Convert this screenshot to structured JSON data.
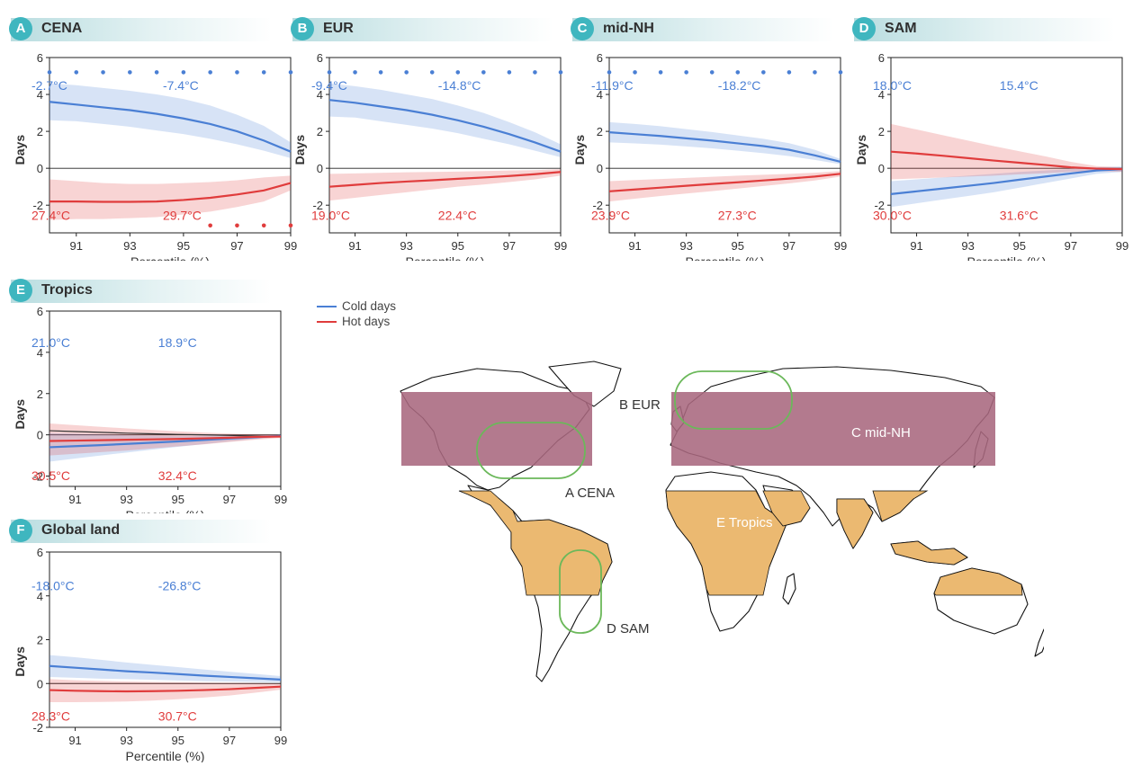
{
  "legend": {
    "cold_label": "Cold days",
    "hot_label": "Hot days",
    "cold_color": "#4a7fd4",
    "hot_color": "#e03c3c"
  },
  "chart_data": [
    {
      "id": "A",
      "title": "CENA",
      "type": "line",
      "xlabel": "Percentile (%)",
      "ylabel": "Days",
      "xlim": [
        90,
        99
      ],
      "ylim": [
        -3.5,
        6
      ],
      "xticks": [
        91,
        93,
        95,
        97,
        99
      ],
      "yticks": [
        -2,
        0,
        2,
        4,
        6
      ],
      "cold_temp_left": "-2.7°C",
      "cold_temp_right": "-7.4°C",
      "hot_temp_left": "27.4°C",
      "hot_temp_right": "29.7°C",
      "x": [
        90,
        91,
        92,
        93,
        94,
        95,
        96,
        97,
        98,
        99
      ],
      "cold": {
        "mean": [
          3.6,
          3.45,
          3.3,
          3.15,
          2.95,
          2.7,
          2.4,
          2.0,
          1.5,
          0.9
        ],
        "lower": [
          2.6,
          2.55,
          2.4,
          2.25,
          2.05,
          1.85,
          1.6,
          1.3,
          0.95,
          0.55
        ],
        "upper": [
          4.6,
          4.5,
          4.35,
          4.2,
          4.0,
          3.75,
          3.4,
          2.9,
          2.3,
          1.4
        ]
      },
      "hot": {
        "mean": [
          -1.8,
          -1.8,
          -1.82,
          -1.82,
          -1.8,
          -1.72,
          -1.6,
          -1.42,
          -1.2,
          -0.8
        ],
        "lower": [
          -2.8,
          -2.75,
          -2.75,
          -2.7,
          -2.65,
          -2.5,
          -2.35,
          -2.1,
          -1.8,
          -1.2
        ],
        "upper": [
          -0.6,
          -0.7,
          -0.8,
          -0.85,
          -0.85,
          -0.8,
          -0.75,
          -0.65,
          -0.5,
          -0.4
        ]
      },
      "cold_sig_x": [
        90,
        91,
        92,
        93,
        94,
        95,
        96,
        97,
        98,
        99
      ],
      "hot_sig_x": [
        96,
        97,
        98,
        99
      ]
    },
    {
      "id": "B",
      "title": "EUR",
      "type": "line",
      "xlabel": "Percentile (%)",
      "ylabel": "Days",
      "xlim": [
        90,
        99
      ],
      "ylim": [
        -3.5,
        6
      ],
      "xticks": [
        91,
        93,
        95,
        97,
        99
      ],
      "yticks": [
        -2,
        0,
        2,
        4,
        6
      ],
      "cold_temp_left": "-9.4°C",
      "cold_temp_right": "-14.8°C",
      "hot_temp_left": "19.0°C",
      "hot_temp_right": "22.4°C",
      "x": [
        90,
        91,
        92,
        93,
        94,
        95,
        96,
        97,
        98,
        99
      ],
      "cold": {
        "mean": [
          3.7,
          3.55,
          3.35,
          3.15,
          2.9,
          2.6,
          2.25,
          1.85,
          1.4,
          0.9
        ],
        "lower": [
          2.8,
          2.75,
          2.55,
          2.35,
          2.15,
          1.9,
          1.6,
          1.3,
          0.95,
          0.6
        ],
        "upper": [
          4.6,
          4.45,
          4.25,
          4.0,
          3.75,
          3.4,
          3.0,
          2.5,
          1.95,
          1.3
        ]
      },
      "hot": {
        "mean": [
          -1.0,
          -0.9,
          -0.8,
          -0.72,
          -0.65,
          -0.57,
          -0.5,
          -0.42,
          -0.32,
          -0.2
        ],
        "lower": [
          -1.75,
          -1.6,
          -1.45,
          -1.3,
          -1.15,
          -1.0,
          -0.88,
          -0.75,
          -0.6,
          -0.4
        ],
        "upper": [
          -0.3,
          -0.28,
          -0.25,
          -0.22,
          -0.2,
          -0.18,
          -0.15,
          -0.12,
          -0.1,
          -0.05
        ]
      },
      "cold_sig_x": [
        90,
        91,
        92,
        93,
        94,
        95,
        96,
        97,
        98,
        99
      ],
      "hot_sig_x": []
    },
    {
      "id": "C",
      "title": "mid-NH",
      "type": "line",
      "xlabel": "Percentile (%)",
      "ylabel": "Days",
      "xlim": [
        90,
        99
      ],
      "ylim": [
        -3.5,
        6
      ],
      "xticks": [
        91,
        93,
        95,
        97,
        99
      ],
      "yticks": [
        -2,
        0,
        2,
        4,
        6
      ],
      "cold_temp_left": "-11.9°C",
      "cold_temp_right": "-18.2°C",
      "hot_temp_left": "23.9°C",
      "hot_temp_right": "27.3°C",
      "x": [
        90,
        91,
        92,
        93,
        94,
        95,
        96,
        97,
        98,
        99
      ],
      "cold": {
        "mean": [
          1.95,
          1.85,
          1.75,
          1.62,
          1.5,
          1.35,
          1.2,
          1.0,
          0.7,
          0.35
        ],
        "lower": [
          1.4,
          1.35,
          1.28,
          1.18,
          1.08,
          0.95,
          0.82,
          0.66,
          0.45,
          0.22
        ],
        "upper": [
          2.5,
          2.4,
          2.28,
          2.12,
          1.96,
          1.78,
          1.6,
          1.36,
          1.0,
          0.5
        ]
      },
      "hot": {
        "mean": [
          -1.25,
          -1.15,
          -1.05,
          -0.95,
          -0.85,
          -0.76,
          -0.66,
          -0.56,
          -0.45,
          -0.3
        ],
        "lower": [
          -1.8,
          -1.65,
          -1.5,
          -1.37,
          -1.24,
          -1.1,
          -0.96,
          -0.82,
          -0.66,
          -0.45
        ],
        "upper": [
          -0.7,
          -0.64,
          -0.58,
          -0.52,
          -0.46,
          -0.4,
          -0.35,
          -0.3,
          -0.24,
          -0.15
        ]
      },
      "cold_sig_x": [
        90,
        91,
        92,
        93,
        94,
        95,
        96,
        97,
        98,
        99
      ],
      "hot_sig_x": []
    },
    {
      "id": "D",
      "title": "SAM",
      "type": "line",
      "xlabel": "Percentile (%)",
      "ylabel": "Days",
      "xlim": [
        90,
        99
      ],
      "ylim": [
        -3.5,
        6
      ],
      "xticks": [
        91,
        93,
        95,
        97,
        99
      ],
      "yticks": [
        -2,
        0,
        2,
        4,
        6
      ],
      "cold_temp_left": "18.0°C",
      "cold_temp_right": "15.4°C",
      "hot_temp_left": "30.0°C",
      "hot_temp_right": "31.6°C",
      "x": [
        90,
        91,
        92,
        93,
        94,
        95,
        96,
        97,
        98,
        99
      ],
      "cold": {
        "mean": [
          -1.4,
          -1.25,
          -1.1,
          -0.95,
          -0.8,
          -0.62,
          -0.45,
          -0.28,
          -0.12,
          -0.05
        ],
        "lower": [
          -2.1,
          -1.9,
          -1.7,
          -1.5,
          -1.3,
          -1.05,
          -0.8,
          -0.55,
          -0.3,
          -0.2
        ],
        "upper": [
          -0.7,
          -0.6,
          -0.5,
          -0.4,
          -0.3,
          -0.2,
          -0.12,
          -0.05,
          0.05,
          0.1
        ]
      },
      "hot": {
        "mean": [
          0.9,
          0.8,
          0.68,
          0.55,
          0.42,
          0.3,
          0.18,
          0.05,
          -0.02,
          -0.05
        ],
        "lower": [
          -0.6,
          -0.55,
          -0.5,
          -0.45,
          -0.4,
          -0.33,
          -0.27,
          -0.2,
          -0.15,
          -0.2
        ],
        "upper": [
          2.4,
          2.1,
          1.8,
          1.5,
          1.2,
          0.92,
          0.65,
          0.35,
          0.12,
          0.05
        ]
      },
      "cold_sig_x": [],
      "hot_sig_x": []
    },
    {
      "id": "E",
      "title": "Tropics",
      "type": "line",
      "xlabel": "Percentile (%)",
      "ylabel": "Days",
      "xlim": [
        90,
        99
      ],
      "ylim": [
        -2.5,
        6
      ],
      "xticks": [
        91,
        93,
        95,
        97,
        99
      ],
      "yticks": [
        -2,
        0,
        2,
        4,
        6
      ],
      "cold_temp_left": "21.0°C",
      "cold_temp_right": "18.9°C",
      "hot_temp_left": "30.5°C",
      "hot_temp_right": "32.4°C",
      "x": [
        90,
        91,
        92,
        93,
        94,
        95,
        96,
        97,
        98,
        99
      ],
      "cold": {
        "mean": [
          -0.6,
          -0.55,
          -0.5,
          -0.44,
          -0.38,
          -0.32,
          -0.25,
          -0.18,
          -0.12,
          -0.05
        ],
        "lower": [
          -1.3,
          -1.15,
          -1.0,
          -0.86,
          -0.72,
          -0.58,
          -0.45,
          -0.32,
          -0.2,
          -0.1
        ],
        "upper": [
          0.1,
          0.06,
          0.02,
          -0.02,
          -0.04,
          -0.06,
          -0.05,
          -0.04,
          -0.03,
          0.0
        ]
      },
      "hot": {
        "mean": [
          -0.3,
          -0.28,
          -0.26,
          -0.24,
          -0.22,
          -0.2,
          -0.17,
          -0.14,
          -0.1,
          -0.08
        ],
        "lower": [
          -1.0,
          -0.92,
          -0.84,
          -0.76,
          -0.66,
          -0.56,
          -0.46,
          -0.35,
          -0.24,
          -0.15
        ],
        "upper": [
          0.55,
          0.47,
          0.39,
          0.31,
          0.24,
          0.17,
          0.11,
          0.06,
          0.02,
          0.0
        ]
      },
      "total": {
        "mean": [
          0.2,
          0.16,
          0.12,
          0.08,
          0.05,
          0.02,
          0.0,
          -0.03,
          -0.06,
          -0.08
        ]
      },
      "cold_sig_x": [],
      "hot_sig_x": []
    },
    {
      "id": "F",
      "title": "Global land",
      "type": "line",
      "xlabel": "Percentile (%)",
      "ylabel": "Days",
      "xlim": [
        90,
        99
      ],
      "ylim": [
        -2,
        6
      ],
      "xticks": [
        91,
        93,
        95,
        97,
        99
      ],
      "yticks": [
        -2,
        0,
        2,
        4,
        6
      ],
      "cold_temp_left": "-18.0°C",
      "cold_temp_right": "-26.8°C",
      "hot_temp_left": "28.3°C",
      "hot_temp_right": "30.7°C",
      "x": [
        90,
        91,
        92,
        93,
        94,
        95,
        96,
        97,
        98,
        99
      ],
      "cold": {
        "mean": [
          0.8,
          0.72,
          0.64,
          0.56,
          0.5,
          0.43,
          0.36,
          0.3,
          0.24,
          0.18
        ],
        "lower": [
          0.3,
          0.26,
          0.22,
          0.2,
          0.17,
          0.14,
          0.11,
          0.09,
          0.07,
          0.05
        ],
        "upper": [
          1.3,
          1.2,
          1.08,
          0.96,
          0.85,
          0.75,
          0.64,
          0.54,
          0.44,
          0.34
        ]
      },
      "hot": {
        "mean": [
          -0.3,
          -0.33,
          -0.35,
          -0.36,
          -0.35,
          -0.33,
          -0.3,
          -0.26,
          -0.2,
          -0.14
        ],
        "lower": [
          -0.85,
          -0.85,
          -0.84,
          -0.82,
          -0.78,
          -0.72,
          -0.64,
          -0.55,
          -0.42,
          -0.28
        ],
        "upper": [
          0.2,
          0.15,
          0.12,
          0.09,
          0.07,
          0.06,
          0.04,
          0.03,
          0.02,
          0.0
        ]
      },
      "cold_sig_x": [],
      "hot_sig_x": []
    }
  ],
  "map": {
    "region_labels": {
      "cena": "A  CENA",
      "eur": "B  EUR",
      "midnh": "C mid-NH",
      "sam": "D  SAM",
      "tropics": "E Tropics"
    },
    "midnh_color": "#a8687e",
    "tropics_color": "#ebb971",
    "outline_color": "#6bb85a"
  }
}
